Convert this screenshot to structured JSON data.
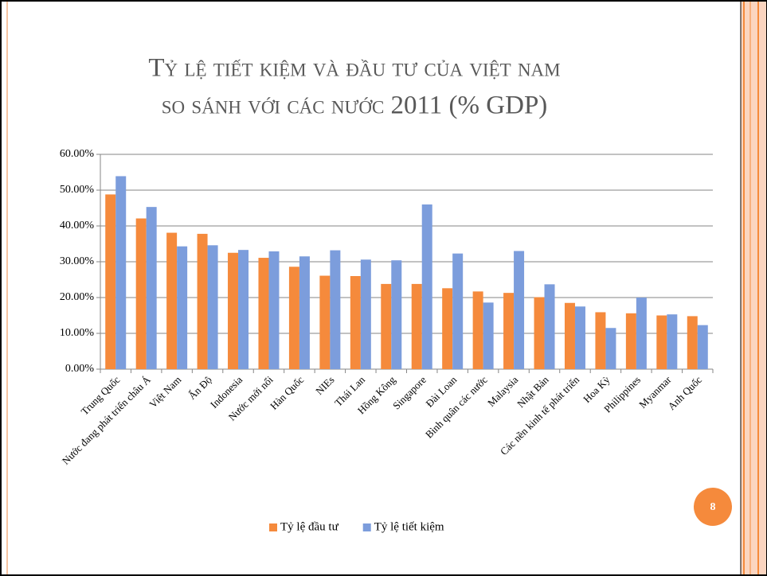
{
  "chart_data": {
    "type": "bar",
    "title_lines": [
      "Tỷ lệ tiết kiệm và đầu tư của việt nam",
      "so sánh với các nước 2011 (% GDP)"
    ],
    "categories": [
      "Trung Quốc",
      "Nước đang phát triển châu Á",
      "Việt Nam",
      "Ấn Độ",
      "Indonesia",
      "Nước mới nổi",
      "Hàn Quốc",
      "NIEs",
      "Thái Lan",
      "Hồng Kông",
      "Singapore",
      "Đài Loan",
      "Bình quân các nước",
      "Malaysia",
      "Nhật Bản",
      "Các nền kinh tế phát triển",
      "Hoa Kỳ",
      "Philippines",
      "Myanmar",
      "Anh Quốc"
    ],
    "series": [
      {
        "name": "Tỷ lệ đầu tư",
        "color": "#f58a3c",
        "values": [
          48.8,
          42.1,
          38.1,
          37.8,
          32.5,
          31.1,
          28.6,
          26.1,
          26.0,
          23.8,
          23.8,
          22.6,
          21.7,
          21.3,
          20.1,
          18.5,
          15.9,
          15.6,
          15.0,
          14.8
        ]
      },
      {
        "name": "Tỷ lệ tiết kiệm",
        "color": "#7c9ddc",
        "values": [
          53.9,
          45.3,
          34.3,
          34.6,
          33.3,
          32.9,
          31.5,
          33.2,
          30.6,
          30.4,
          46.0,
          32.3,
          18.6,
          33.0,
          23.7,
          17.5,
          11.5,
          20.0,
          15.3,
          12.3
        ]
      }
    ],
    "ylim": [
      0,
      60
    ],
    "yticks": [
      {
        "value": 0,
        "label": "0.00%"
      },
      {
        "value": 10,
        "label": "10.00%"
      },
      {
        "value": 20,
        "label": "20.00%"
      },
      {
        "value": 30,
        "label": "30.00%"
      },
      {
        "value": 40,
        "label": "40.00%"
      },
      {
        "value": 50,
        "label": "50.00%"
      },
      {
        "value": 60,
        "label": "60.00%"
      }
    ],
    "grid": true,
    "legend": "bottom"
  },
  "slide": {
    "page_number": "8"
  }
}
